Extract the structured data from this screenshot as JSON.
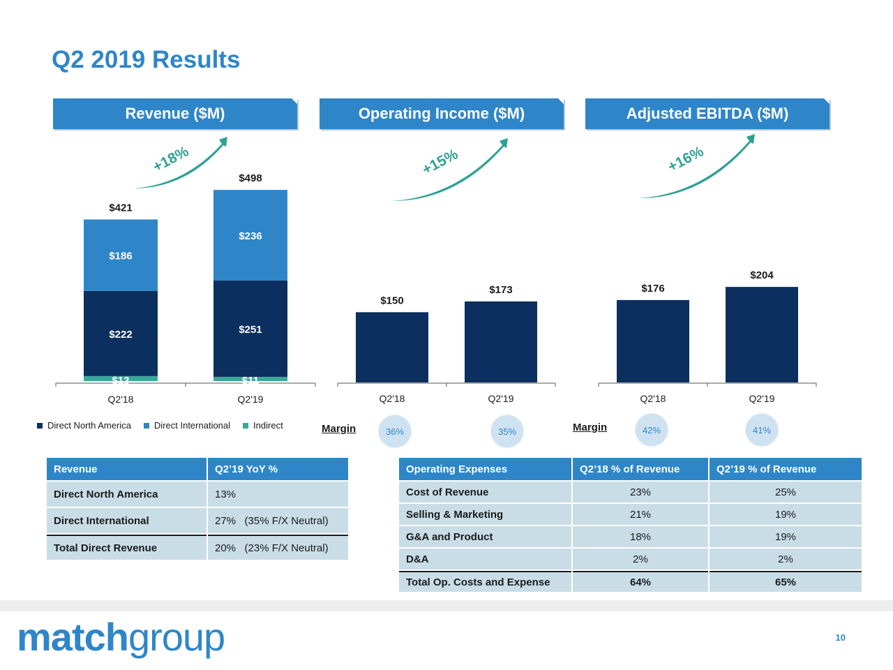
{
  "title": "Q2 2019 Results",
  "colors": {
    "direct_north_america": "#0b2f5e",
    "direct_international": "#2e86c8",
    "indirect": "#3aa79a",
    "arrow": "#2ea094",
    "header": "#2e86c8"
  },
  "legend": {
    "items": [
      {
        "label": "Direct North America",
        "color": "#0b2f5e"
      },
      {
        "label": "Direct International",
        "color": "#2e86c8"
      },
      {
        "label": "Indirect",
        "color": "#3aa79a"
      }
    ]
  },
  "chart_data": [
    {
      "type": "bar",
      "title": "Revenue ($M)",
      "stacked": true,
      "categories": [
        "Q2'18",
        "Q2'19"
      ],
      "series": [
        {
          "name": "Indirect",
          "values": [
            13,
            11
          ],
          "labels": [
            "$13",
            "$11"
          ]
        },
        {
          "name": "Direct North America",
          "values": [
            222,
            251
          ],
          "labels": [
            "$222",
            "$251"
          ]
        },
        {
          "name": "Direct International",
          "values": [
            186,
            236
          ],
          "labels": [
            "$186",
            "$236"
          ]
        }
      ],
      "totals": [
        421,
        498
      ],
      "total_labels": [
        "$421",
        "$498"
      ],
      "growth_label": "+18%"
    },
    {
      "type": "bar",
      "title": "Operating Income ($M)",
      "categories": [
        "Q2'18",
        "Q2'19"
      ],
      "values": [
        150,
        173
      ],
      "value_labels": [
        "$150",
        "$173"
      ],
      "growth_label": "+15%",
      "margin_label": "Margin",
      "margins": [
        "36%",
        "35%"
      ]
    },
    {
      "type": "bar",
      "title": "Adjusted EBITDA ($M)",
      "categories": [
        "Q2'18",
        "Q2'19"
      ],
      "values": [
        176,
        204
      ],
      "value_labels": [
        "$176",
        "$204"
      ],
      "growth_label": "+16%",
      "margin_label": "Margin",
      "margins": [
        "42%",
        "41%"
      ]
    }
  ],
  "revenue_table": {
    "headers": [
      "Revenue",
      "Q2’19 YoY %"
    ],
    "rows": [
      [
        "Direct North America",
        "13%"
      ],
      [
        "Direct International",
        "27%   (35% F/X Neutral)"
      ],
      [
        "Total Direct Revenue",
        "20%   (23% F/X Neutral)"
      ]
    ]
  },
  "opex_table": {
    "headers": [
      "Operating Expenses",
      "Q2’18 % of Revenue",
      "Q2’19 % of Revenue"
    ],
    "rows": [
      [
        "Cost of Revenue",
        "23%",
        "25%"
      ],
      [
        "Selling & Marketing",
        "21%",
        "19%"
      ],
      [
        "G&A and Product",
        "18%",
        "19%"
      ],
      [
        "D&A",
        "2%",
        "2%"
      ],
      [
        "Total Op. Costs and Expense",
        "64%",
        "65%"
      ]
    ]
  },
  "logo": {
    "part1": "match",
    "part2": "group"
  },
  "page_number": "10"
}
